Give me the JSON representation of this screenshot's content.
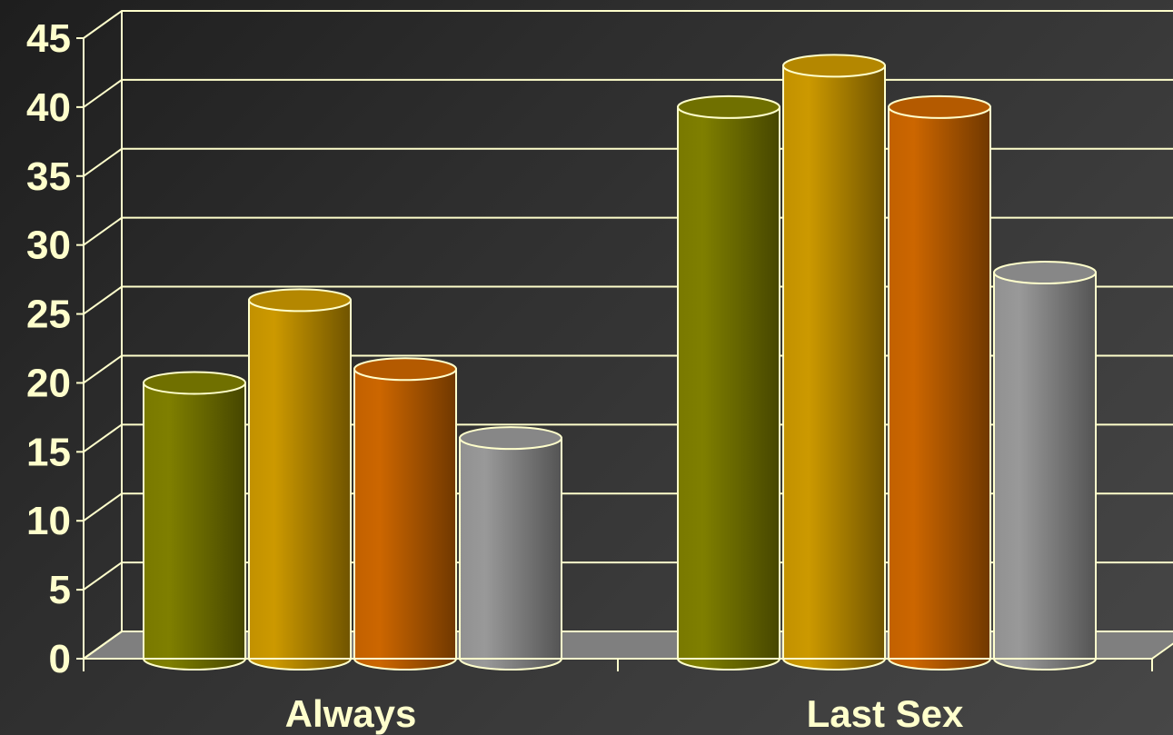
{
  "colors": {
    "grid": "#ffffcc",
    "text": "#ffffcc",
    "floor": "#7f7f7f",
    "series": [
      "#7f7f00",
      "#cc9900",
      "#cc6600",
      "#999999"
    ]
  },
  "chart_data": {
    "type": "bar",
    "style": "3d-cylinder",
    "title": "",
    "xlabel": "",
    "ylabel": "",
    "ylim": [
      0,
      45
    ],
    "yticks": [
      0,
      5,
      10,
      15,
      20,
      25,
      30,
      35,
      40,
      45
    ],
    "grid": true,
    "legend": "none",
    "categories": [
      "Always",
      "Last Sex"
    ],
    "series": [
      {
        "values": [
          20,
          40
        ]
      },
      {
        "values": [
          26,
          43
        ]
      },
      {
        "values": [
          21,
          40
        ]
      },
      {
        "values": [
          16,
          28
        ]
      }
    ]
  }
}
